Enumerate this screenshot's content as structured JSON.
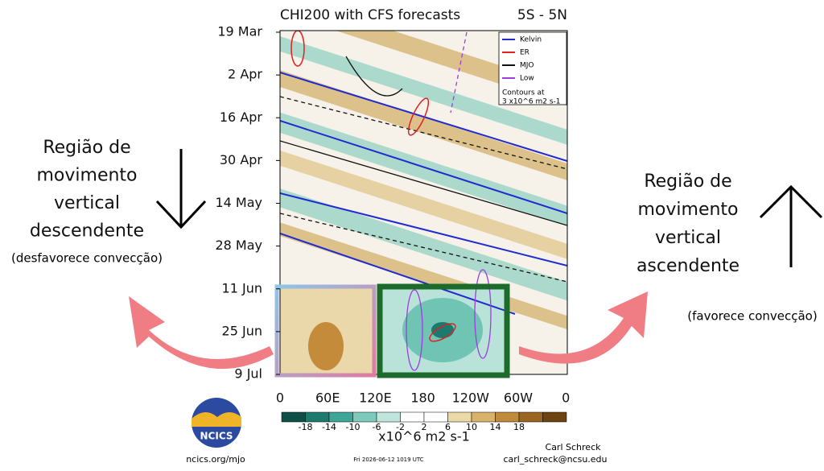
{
  "header": {
    "title": "CHI200 with CFS forecasts",
    "region": "5S - 5N"
  },
  "y_labels": [
    "19 Mar",
    "2 Apr",
    "16 Apr",
    "30 Apr",
    "14 May",
    "28 May",
    "11 Jun",
    "25 Jun",
    "9 Jul"
  ],
  "x_labels": [
    "0",
    "60E",
    "120E",
    "180",
    "120W",
    "60W",
    "0"
  ],
  "legend": {
    "items": [
      "Kelvin",
      "ER",
      "MJO",
      "Low"
    ],
    "note": [
      "Contours at",
      "3 x10^6 m2 s-1"
    ]
  },
  "colorbar": {
    "labels": [
      "-18",
      "-14",
      "-10",
      "-6",
      "-2",
      "2",
      "6",
      "10",
      "14",
      "18"
    ],
    "units": "x10^6 m2 s-1"
  },
  "annotations": {
    "left": [
      "Região de",
      "movimento",
      "vertical",
      "descendente"
    ],
    "left_note": "(desfavorece convecção)",
    "right": [
      "Região de",
      "movimento",
      "vertical",
      "ascendente"
    ],
    "right_note": "(favorece convecção)"
  },
  "footer": {
    "logo": "NCICS",
    "site": "ncics.org/mjo",
    "timestamp": "Fri 2026-06-12 1019 UTC",
    "author": "Carl Schreck",
    "email": "carl_schreck@ncsu.edu"
  }
}
